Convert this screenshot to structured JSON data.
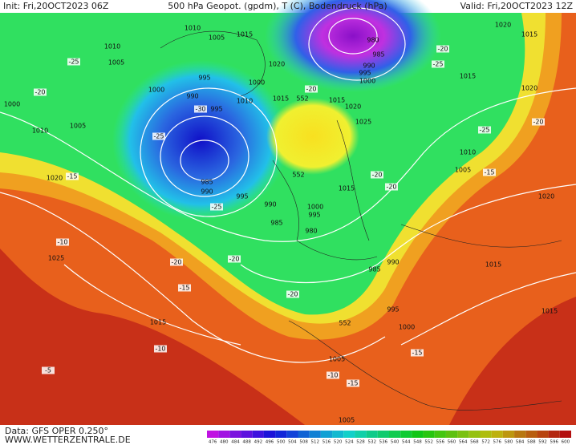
{
  "header": {
    "init": "Init: Fri,20OCT2023 06Z",
    "title": "500 hPa Geopot. (gpdm), T (C), Bodendruck (hPa)",
    "valid": "Valid: Fri,20OCT2023 12Z"
  },
  "footer": {
    "data": "Data: GFS OPER 0.250°",
    "site": "WWW.WETTERZENTRALE.DE"
  },
  "colorbar": {
    "ticks": [
      476,
      480,
      484,
      488,
      492,
      496,
      500,
      504,
      508,
      512,
      516,
      520,
      524,
      528,
      532,
      536,
      540,
      544,
      548,
      552,
      556,
      560,
      564,
      568,
      572,
      576,
      580,
      584,
      588,
      592,
      596,
      600
    ]
  },
  "map_labels": [
    "1010",
    "1005",
    "1015",
    "1010",
    "1005",
    "1020",
    "995",
    "1000",
    "990",
    "1000",
    "995",
    "1010",
    "1015",
    "1015",
    "1020",
    "1025",
    "1010",
    "1005",
    "1020",
    "985",
    "990",
    "995",
    "990",
    "1015",
    "1000",
    "995",
    "985",
    "980",
    "985",
    "990",
    "1025",
    "1015",
    "995",
    "1000",
    "1005",
    "1005",
    "1010",
    "1005",
    "1015",
    "1020",
    "1015",
    "1020",
    "1020",
    "1015",
    "1015",
    "980",
    "985",
    "990",
    "995",
    "1000",
    "552",
    "552",
    "552",
    "1000",
    "-25",
    "-20",
    "-25",
    "-25",
    "-20",
    "-20",
    "-15",
    "-10",
    "-15",
    "-10",
    "-5",
    "-20",
    "-15",
    "-10",
    "-15",
    "-20",
    "-25",
    "-25",
    "-20",
    "-15",
    "-20",
    "-20",
    "-30",
    "-20"
  ]
}
